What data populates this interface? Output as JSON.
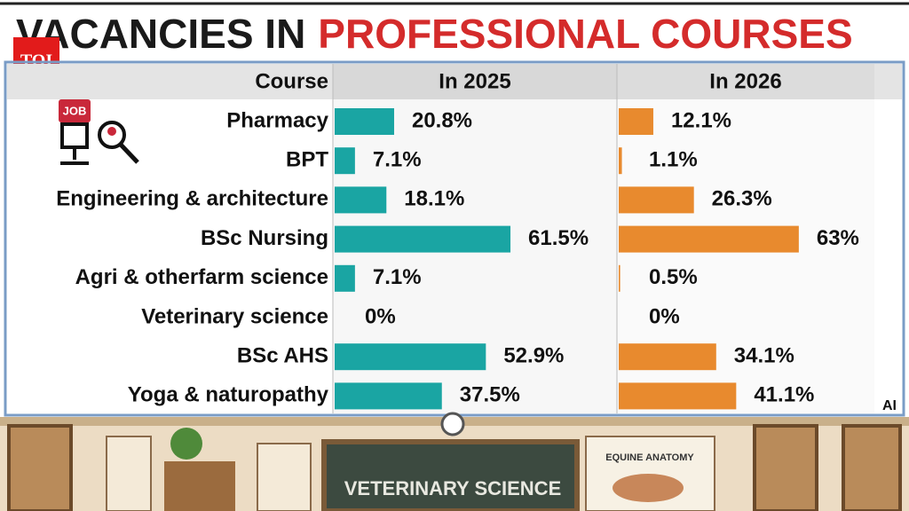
{
  "brand": "TOI",
  "icon_text": "JOB",
  "ai_note": "AI",
  "illustration": {
    "board": "VETERINARY SCIENCE",
    "poster": "EQUINE ANATOMY"
  },
  "chart_data": {
    "type": "bar",
    "orientation": "horizontal",
    "title": "VACANCIES IN",
    "title_highlight": "PROFESSIONAL COURSES",
    "category_header": "Course",
    "categories": [
      "Pharmacy",
      "BPT",
      "Engineering & architecture",
      "BSc Nursing",
      "Agri & otherfarm science",
      "Veterinary science",
      "BSc AHS",
      "Yoga & naturopathy"
    ],
    "series": [
      {
        "name": "In 2025",
        "color": "#1aa5a3",
        "values": [
          20.8,
          7.1,
          18.1,
          61.5,
          7.1,
          0,
          52.9,
          37.5
        ],
        "value_labels": [
          "20.8%",
          "7.1%",
          "18.1%",
          "61.5%",
          "7.1%",
          "0%",
          "52.9%",
          "37.5%"
        ]
      },
      {
        "name": "In 2026",
        "color": "#e88a2e",
        "values": [
          12.1,
          1.1,
          26.3,
          63,
          0.5,
          0,
          34.1,
          41.1
        ],
        "value_labels": [
          "12.1%",
          "1.1%",
          "26.3%",
          "63%",
          "0.5%",
          "0%",
          "34.1%",
          "41.1%"
        ]
      }
    ]
  }
}
